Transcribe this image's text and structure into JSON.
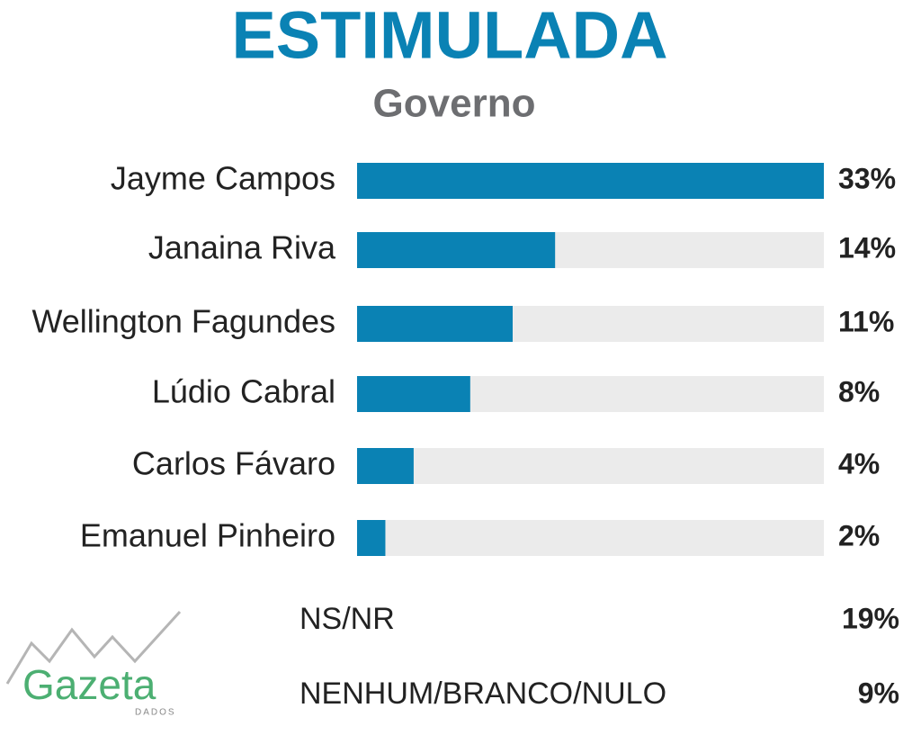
{
  "chart_data": {
    "type": "bar",
    "orientation": "horizontal",
    "title": "ESTIMULADA",
    "subtitle": "Governo",
    "categories": [
      "Jayme Campos",
      "Janaina Riva",
      "Wellington Fagundes",
      "Lúdio Cabral",
      "Carlos Fávaro",
      "Emanuel Pinheiro"
    ],
    "values": [
      33,
      14,
      11,
      8,
      4,
      2
    ],
    "value_labels": [
      "33%",
      "14%",
      "11%",
      "8%",
      "4%",
      "2%"
    ],
    "color": "#0a82b4",
    "track_color": "#ebebeb",
    "xlim": [
      0,
      33
    ]
  },
  "other_responses": [
    {
      "label": "NS/NR",
      "value": "19%"
    },
    {
      "label": "NENHUM/BRANCO/NULO",
      "value": "9%"
    }
  ],
  "logo": {
    "name": "Gazeta",
    "tagline": "DADOS"
  }
}
